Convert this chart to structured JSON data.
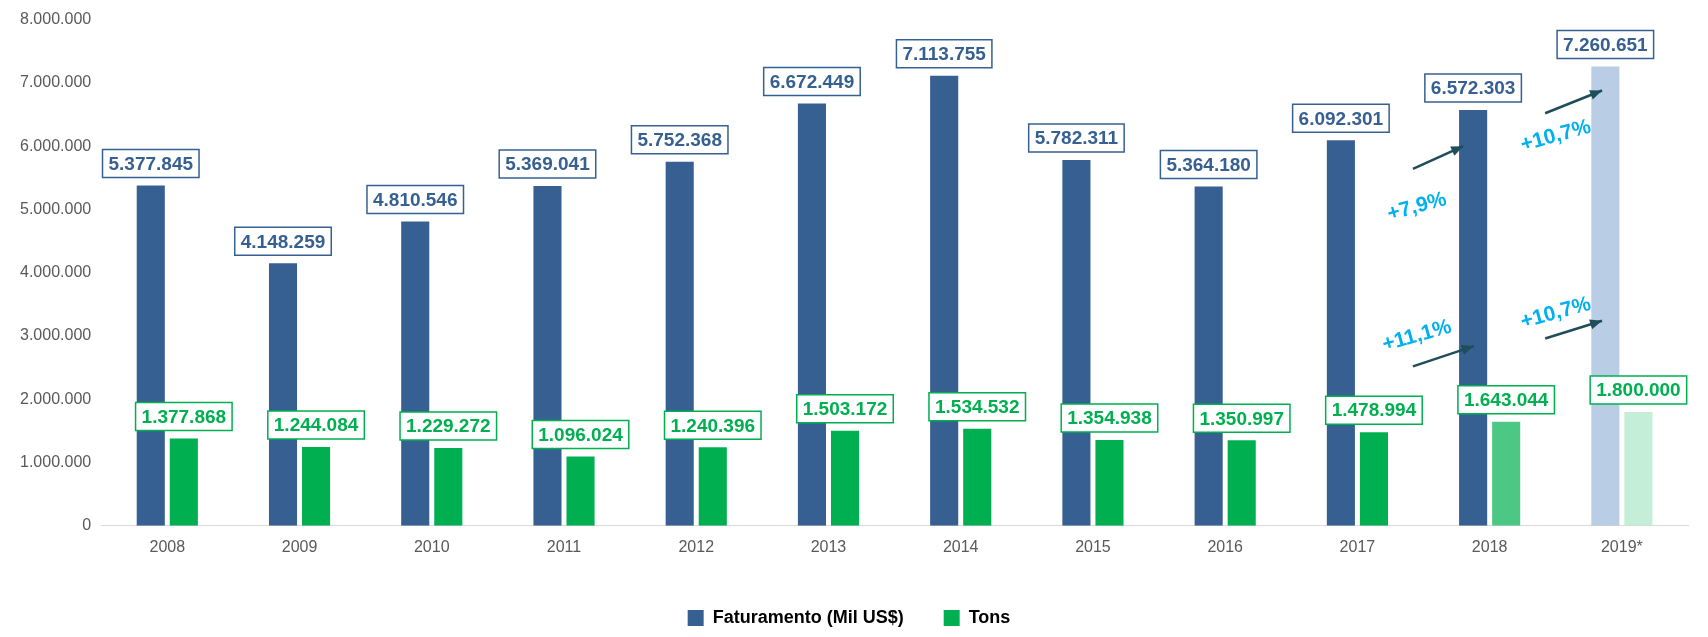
{
  "chart_data": {
    "type": "bar",
    "categories": [
      "2008",
      "2009",
      "2010",
      "2011",
      "2012",
      "2013",
      "2014",
      "2015",
      "2016",
      "2017",
      "2018",
      "2019*"
    ],
    "series": [
      {
        "name": "Faturamento (Mil US$)",
        "color": "#376092",
        "colors": [
          "#376092",
          "#376092",
          "#376092",
          "#376092",
          "#376092",
          "#376092",
          "#376092",
          "#376092",
          "#376092",
          "#376092",
          "#376092",
          "#b9cde5"
        ],
        "values": [
          5377845,
          4148259,
          4810546,
          5369041,
          5752368,
          6672449,
          7113755,
          5782311,
          5364180,
          6092301,
          6572303,
          7260651
        ],
        "value_labels": [
          "5.377.845",
          "4.148.259",
          "4.810.546",
          "5.369.041",
          "5.752.368",
          "6.672.449",
          "7.113.755",
          "5.782.311",
          "5.364.180",
          "6.092.301",
          "6.572.303",
          "7.260.651"
        ]
      },
      {
        "name": "Tons",
        "color": "#00b050",
        "colors": [
          "#00b050",
          "#00b050",
          "#00b050",
          "#00b050",
          "#00b050",
          "#00b050",
          "#00b050",
          "#00b050",
          "#00b050",
          "#00b050",
          "#4cc884",
          "#c4eed7"
        ],
        "values": [
          1377868,
          1244084,
          1229272,
          1096024,
          1240396,
          1503172,
          1534532,
          1354938,
          1350997,
          1478994,
          1643044,
          1800000
        ],
        "value_labels": [
          "1.377.868",
          "1.244.084",
          "1.229.272",
          "1.096.024",
          "1.240.396",
          "1.503.172",
          "1.534.532",
          "1.354.938",
          "1.350.997",
          "1.478.994",
          "1.643.044",
          "1.800.000"
        ]
      }
    ],
    "ylim": [
      0,
      8000000
    ],
    "yticks": [
      0,
      {
        "value": 1000000,
        "label": "1.000.000"
      },
      {
        "value": 2000000,
        "label": "2.000.000"
      },
      {
        "value": 3000000,
        "label": "3.000.000"
      },
      {
        "value": 4000000,
        "label": "4.000.000"
      },
      {
        "value": 5000000,
        "label": "5.000.000"
      },
      {
        "value": 6000000,
        "label": "6.000.000"
      },
      {
        "value": 7000000,
        "label": "7.000.000"
      },
      {
        "value": 8000000,
        "label": "8.000.000"
      }
    ],
    "grid": false,
    "legend": "bottom",
    "annotations": [
      "+7,9%",
      "+10,7%",
      "+11,1%",
      "+10,7%"
    ]
  }
}
